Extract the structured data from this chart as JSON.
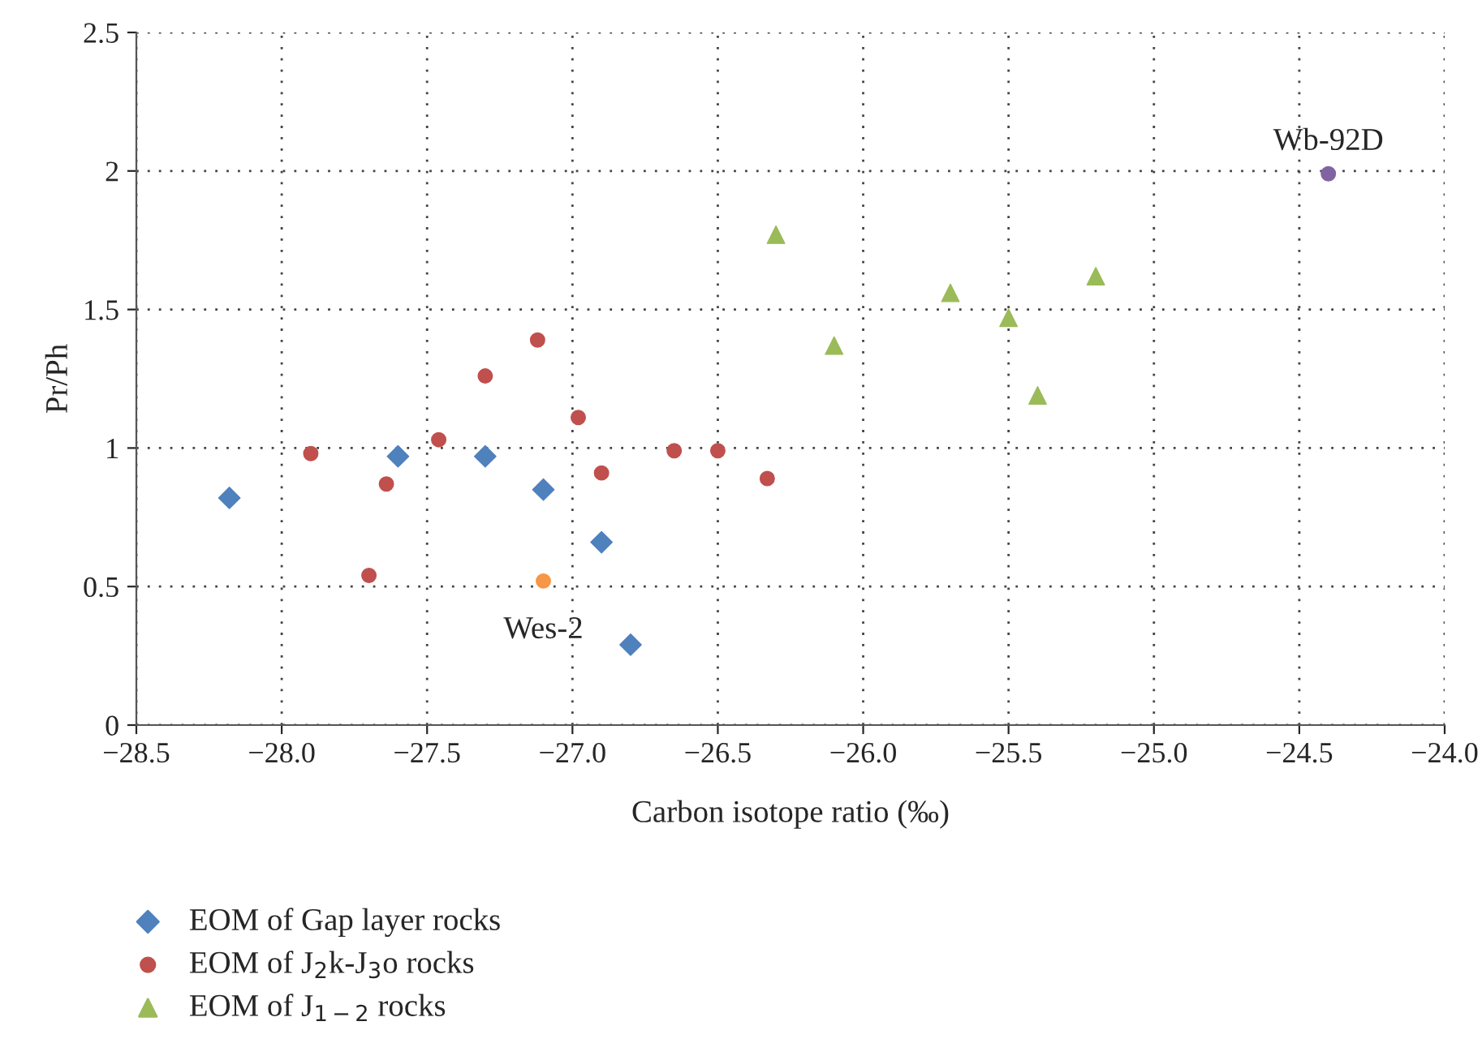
{
  "chart_data": {
    "type": "scatter",
    "xlabel": "Carbon isotope ratio (‰)",
    "ylabel": "Pr/Ph",
    "xlim": [
      -28.5,
      -24.0
    ],
    "ylim": [
      0,
      2.5
    ],
    "xticks": [
      {
        "value": -28.5,
        "label": "−28.5"
      },
      {
        "value": -28.0,
        "label": "−28.0"
      },
      {
        "value": -27.5,
        "label": "−27.5"
      },
      {
        "value": -27.0,
        "label": "−27.0"
      },
      {
        "value": -26.5,
        "label": "−26.5"
      },
      {
        "value": -26.0,
        "label": "−26.0"
      },
      {
        "value": -25.5,
        "label": "−25.5"
      },
      {
        "value": -25.0,
        "label": "−25.0"
      },
      {
        "value": -24.5,
        "label": "−24.5"
      },
      {
        "value": -24.0,
        "label": "−24.0"
      }
    ],
    "yticks": [
      0,
      0.5,
      1,
      1.5,
      2,
      2.5
    ],
    "grid": true,
    "legend": "bottom left",
    "series": [
      {
        "name": "EOM of Gap layer rocks",
        "color": "#4f81bd",
        "marker": "diamond",
        "x": [
          -28.18,
          -27.6,
          -27.3,
          -27.1,
          -26.9,
          -26.8
        ],
        "values": [
          0.82,
          0.97,
          0.97,
          0.85,
          0.66,
          0.29
        ]
      },
      {
        "name": "EOM of J$_{2}$k-J$_{3}$o rocks",
        "color": "#c0504d",
        "marker": "circle",
        "x": [
          -27.9,
          -27.7,
          -27.64,
          -27.46,
          -27.3,
          -27.12,
          -26.98,
          -26.9,
          -26.65,
          -26.5,
          -26.33
        ],
        "values": [
          0.98,
          0.54,
          0.87,
          1.03,
          1.26,
          1.39,
          1.11,
          0.91,
          0.99,
          0.99,
          0.89
        ]
      },
      {
        "name": "EOM of J$_{1−2}$ rocks",
        "color": "#9bbb59",
        "marker": "triangle",
        "x": [
          -26.3,
          -26.1,
          -25.7,
          -25.5,
          -25.4,
          -25.2
        ],
        "values": [
          1.77,
          1.37,
          1.56,
          1.47,
          1.19,
          1.62
        ]
      },
      {
        "color": "#f79646",
        "marker": "circle",
        "x": [
          -27.1
        ],
        "values": [
          0.52
        ]
      },
      {
        "color": "#8064a2",
        "marker": "circle",
        "x": [
          -24.4
        ],
        "values": [
          1.99
        ]
      }
    ],
    "annotations": [
      {
        "text": "Wes-2",
        "x": -27.1,
        "y": 0.52
      },
      {
        "text": "Wb-92D",
        "x": -24.4,
        "y": 1.99
      }
    ]
  }
}
